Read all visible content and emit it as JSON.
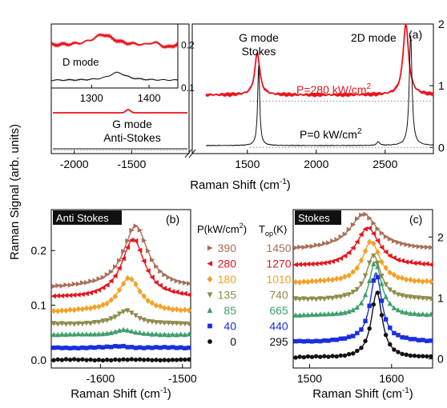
{
  "colors": {
    "p280": "#e8141c",
    "p0": "#111111",
    "c390": "#a86f58",
    "c280": "#e8141c",
    "c180": "#f3a126",
    "c135": "#8e8b4a",
    "c85": "#3d9e6a",
    "c40": "#1a2ee0",
    "c0": "#111111"
  },
  "chart_data": [
    {
      "id": "a",
      "type": "line",
      "panel_label": "(a)",
      "ylabel": "Raman Signal (arb. units)",
      "xlabel": "Raman Shift (cm⁻¹)",
      "xlabel_main": "Raman Shift (cm",
      "xlabel_sup": "-1",
      "xlabel_tail": ")",
      "broken_x_axis": true,
      "left_segment": {
        "xlim": [
          -2200,
          -1000
        ],
        "xticks": [
          -2000,
          -1500
        ]
      },
      "right_segment": {
        "xlim": [
          1100,
          2850
        ],
        "xticks": [
          1500,
          2000,
          2500
        ]
      },
      "ylim": [
        -0.1,
        2.0
      ],
      "yticks": [
        0,
        1,
        2
      ],
      "annotations": [
        "G mode Stokes",
        "2D mode",
        "G mode Anti-Stokes"
      ],
      "annotation_g_stokes_l1": "G mode",
      "annotation_g_stokes_l2": "Stokes",
      "annotation_2d": "2D mode",
      "annotation_g_anti_l1": "G mode",
      "annotation_g_anti_l2": "Anti-Stokes",
      "series": [
        {
          "name": "P=280 kW/cm²",
          "label_main": "P=280 kW/cm",
          "label_sup": "2",
          "color": "#e8141c",
          "baseline": 0.85,
          "peaks": [
            {
              "x": 1572,
              "h": 0.68,
              "w": 22
            },
            {
              "x": 2650,
              "h": 1.15,
              "w": 24
            }
          ]
        },
        {
          "name": "P=0 kW/cm²",
          "label_main": "P=0 kW/cm",
          "label_sup": "2",
          "color": "#111111",
          "baseline": 0.03,
          "peaks": [
            {
              "x": 1582,
              "h": 1.3,
              "w": 9
            },
            {
              "x": 2685,
              "h": 1.78,
              "w": 12
            },
            {
              "x": 2450,
              "h": 0.06,
              "w": 12
            }
          ]
        }
      ],
      "inset": {
        "label": "D mode",
        "xlim": [
          1230,
          1450
        ],
        "xticks": [
          1300,
          1400
        ],
        "ylim": [
          0.1,
          0.25
        ],
        "yticks": [
          0.1,
          0.2
        ],
        "ytick_labels": [
          "0.1",
          "0.2"
        ],
        "series": [
          {
            "name": "P=280 kW/cm²",
            "color": "#e8141c",
            "baseline": 0.2,
            "peak": {
              "x": 1320,
              "h": 0.025,
              "w": 22
            }
          },
          {
            "name": "P=0 kW/cm²",
            "color": "#111111",
            "baseline": 0.118,
            "peak": {
              "x": 1345,
              "h": 0.018,
              "w": 18
            }
          }
        ]
      }
    },
    {
      "id": "b",
      "type": "scatter",
      "panel_label": "(b)",
      "title": "Anti Stokes",
      "xlabel": "Raman Shift (cm⁻¹)",
      "xlabel_main": "Raman Shift (cm",
      "xlabel_sup": "-1",
      "xlabel_tail": ")",
      "ylabel": "Raman Signal (arb. units)",
      "xlim": [
        -1660,
        -1490
      ],
      "xticks": [
        -1600,
        -1500
      ],
      "ylim": [
        -0.015,
        0.275
      ],
      "yticks": [
        0.0,
        0.1,
        0.2
      ],
      "ytick_labels": [
        "0.0",
        "0.1",
        "0.2"
      ],
      "series": [
        {
          "P": "390",
          "Top": "1450",
          "marker": "triangle-right",
          "color": "#a86f58",
          "baseline": 0.132,
          "peak_x": -1557,
          "peak_h": 0.113,
          "w": 18
        },
        {
          "P": "280",
          "Top": "1270",
          "marker": "triangle-left",
          "color": "#e8141c",
          "baseline": 0.113,
          "peak_x": -1560,
          "peak_h": 0.108,
          "w": 17
        },
        {
          "P": "180",
          "Top": "1010",
          "marker": "diamond",
          "color": "#f3a126",
          "baseline": 0.088,
          "peak_x": -1565,
          "peak_h": 0.062,
          "w": 16
        },
        {
          "P": "135",
          "Top": "740",
          "marker": "triangle-down",
          "color": "#8e8b4a",
          "baseline": 0.065,
          "peak_x": -1568,
          "peak_h": 0.025,
          "w": 15
        },
        {
          "P": "85",
          "Top": "665",
          "marker": "triangle-up",
          "color": "#3d9e6a",
          "baseline": 0.046,
          "peak_x": -1572,
          "peak_h": 0.009,
          "w": 13
        },
        {
          "P": "40",
          "Top": "440",
          "marker": "square",
          "color": "#1a2ee0",
          "baseline": 0.022,
          "peak_x": -1575,
          "peak_h": 0.003,
          "w": 12
        },
        {
          "P": "0",
          "Top": "295",
          "marker": "circle",
          "color": "#111111",
          "baseline": 0.0,
          "peak_x": -1580,
          "peak_h": 0.0,
          "w": 10
        }
      ],
      "legend_header_P_main": "P(kW/cm",
      "legend_header_P_sup": "2",
      "legend_header_P_tail": ")",
      "legend_header_T_main": "T",
      "legend_header_T_sub": "op",
      "legend_header_T_tail": "(K)"
    },
    {
      "id": "c",
      "type": "scatter",
      "panel_label": "(c)",
      "title": "Stokes",
      "xlabel": "Raman Shift (cm⁻¹)",
      "xlabel_main": "Raman Shift (cm",
      "xlabel_sup": "-1",
      "xlabel_tail": ")",
      "xlim": [
        1480,
        1650
      ],
      "xticks": [
        1500,
        1600
      ],
      "ylim": [
        -0.15,
        2.45
      ],
      "yticks": [
        0,
        1,
        2
      ],
      "series": [
        {
          "P": "390",
          "marker": "triangle-right",
          "color": "#a86f58",
          "baseline": 1.8,
          "peak_x": 1566,
          "peak_h": 0.58,
          "w": 20
        },
        {
          "P": "280",
          "marker": "triangle-left",
          "color": "#e8141c",
          "baseline": 1.52,
          "peak_x": 1571,
          "peak_h": 0.63,
          "w": 17
        },
        {
          "P": "180",
          "marker": "diamond",
          "color": "#f3a126",
          "baseline": 1.25,
          "peak_x": 1575,
          "peak_h": 0.68,
          "w": 13
        },
        {
          "P": "135",
          "marker": "triangle-down",
          "color": "#8e8b4a",
          "baseline": 0.97,
          "peak_x": 1578,
          "peak_h": 0.73,
          "w": 11
        },
        {
          "P": "85",
          "marker": "triangle-up",
          "color": "#3d9e6a",
          "baseline": 0.71,
          "peak_x": 1580,
          "peak_h": 0.88,
          "w": 9.5
        },
        {
          "P": "40",
          "marker": "square",
          "color": "#1a2ee0",
          "baseline": 0.28,
          "peak_x": 1581,
          "peak_h": 1.13,
          "w": 8.5
        },
        {
          "P": "0",
          "marker": "circle",
          "color": "#111111",
          "baseline": 0.02,
          "peak_x": 1582,
          "peak_h": 1.08,
          "w": 8
        }
      ]
    }
  ]
}
